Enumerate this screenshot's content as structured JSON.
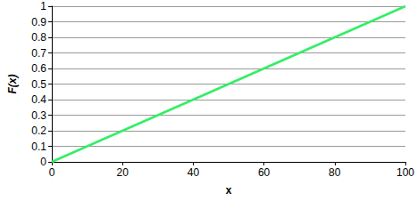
{
  "chart_data": {
    "type": "line",
    "x_label": "x",
    "y_label": "F(x)",
    "x": [
      0,
      100
    ],
    "values": [
      0,
      1
    ],
    "color": "#33ee66",
    "xlim": [
      0,
      100
    ],
    "xticks": [
      0,
      20,
      40,
      60,
      80,
      100
    ],
    "ylim": [
      0,
      1
    ],
    "yticks": [
      0,
      0.1,
      0.2,
      0.3,
      0.4,
      0.5,
      0.6,
      0.7,
      0.8,
      0.9,
      1
    ],
    "grid": true
  }
}
